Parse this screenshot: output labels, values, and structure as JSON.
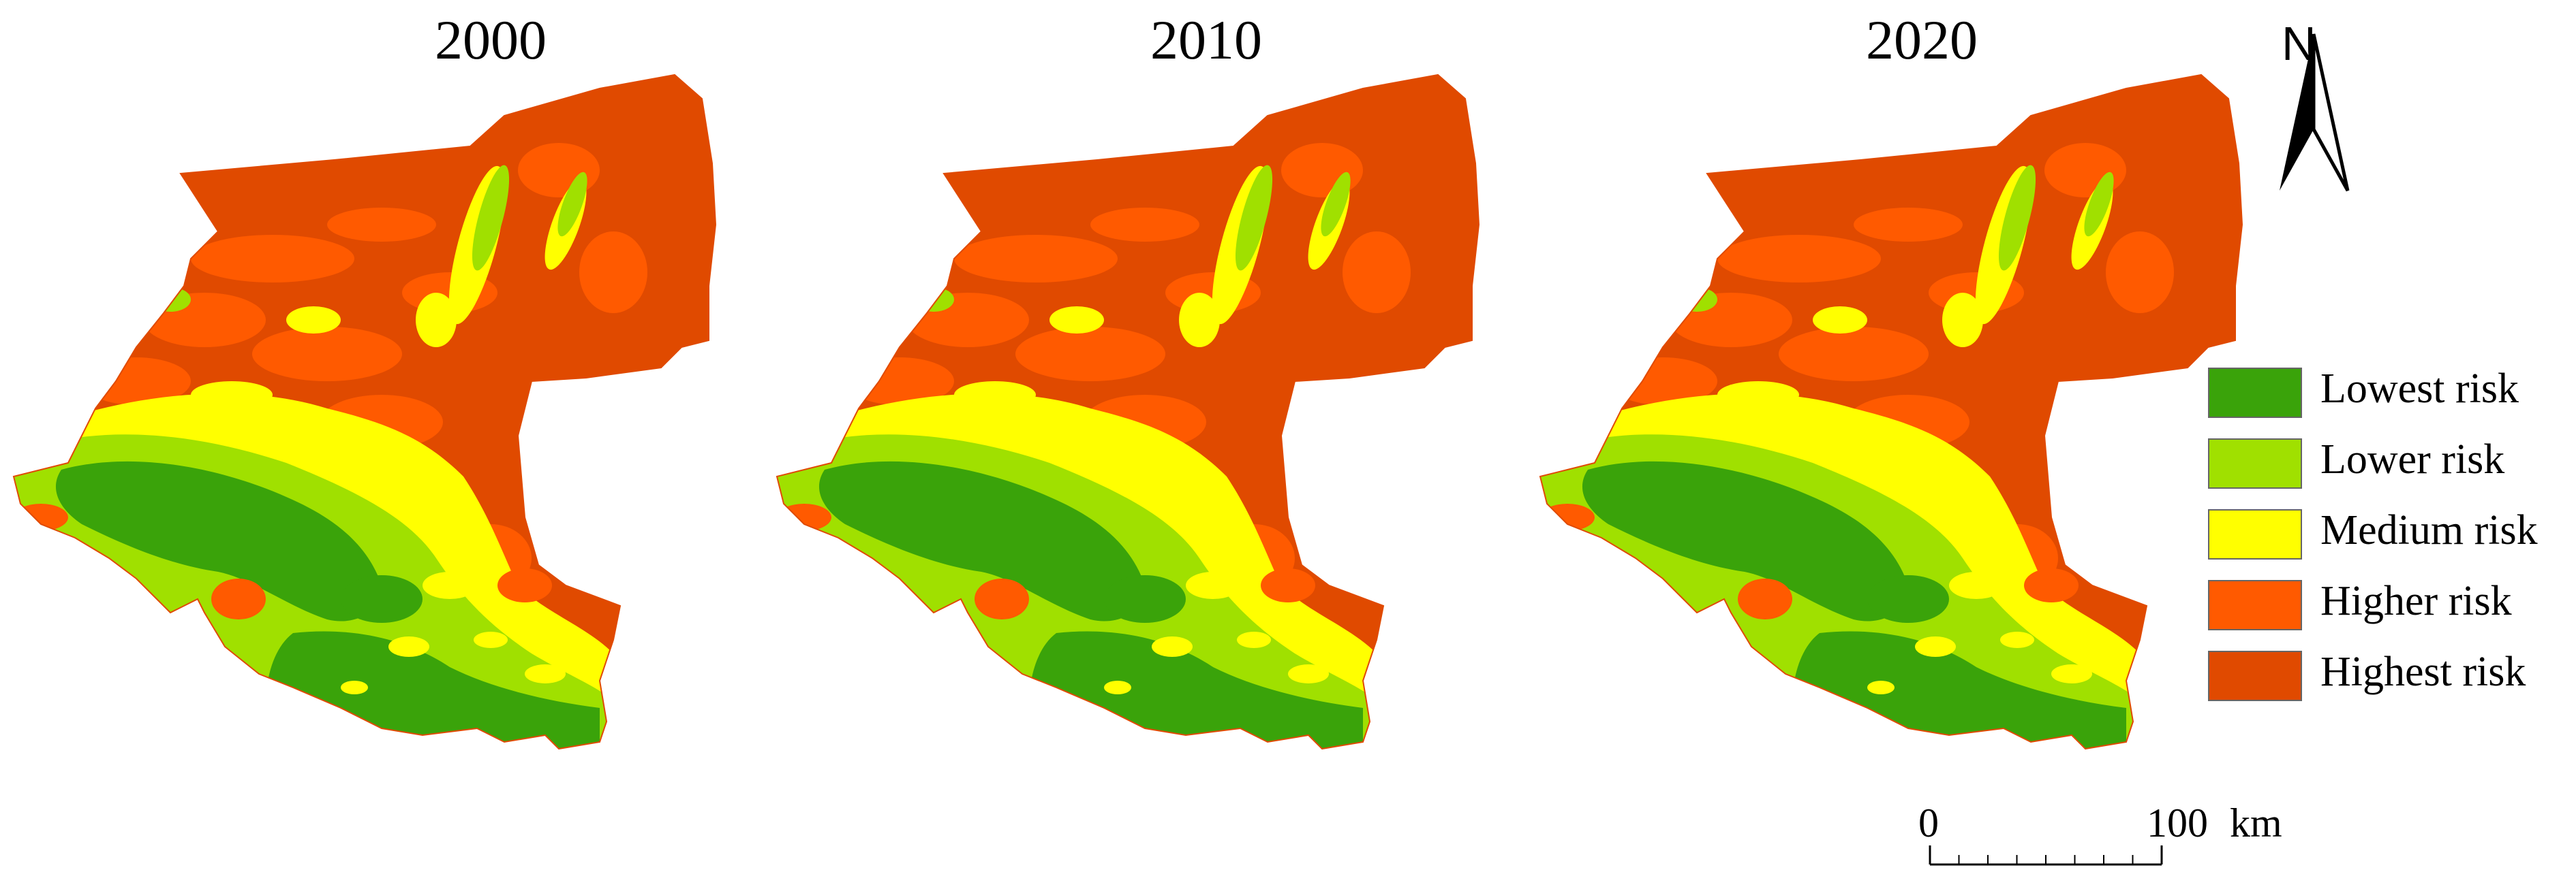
{
  "panels": [
    {
      "year": "2000"
    },
    {
      "year": "2010"
    },
    {
      "year": "2020"
    }
  ],
  "legend": {
    "items": [
      {
        "label": "Lowest risk",
        "color": "#3aa30a"
      },
      {
        "label": "Lower risk",
        "color": "#a0e000"
      },
      {
        "label": "Medium risk",
        "color": "#ffff00"
      },
      {
        "label": "Higher risk",
        "color": "#ff5a00"
      },
      {
        "label": "Highest risk",
        "color": "#e04a00"
      }
    ]
  },
  "north_arrow": {
    "letter": "N"
  },
  "scale_bar": {
    "start": "0",
    "end": "100",
    "unit": "km"
  }
}
